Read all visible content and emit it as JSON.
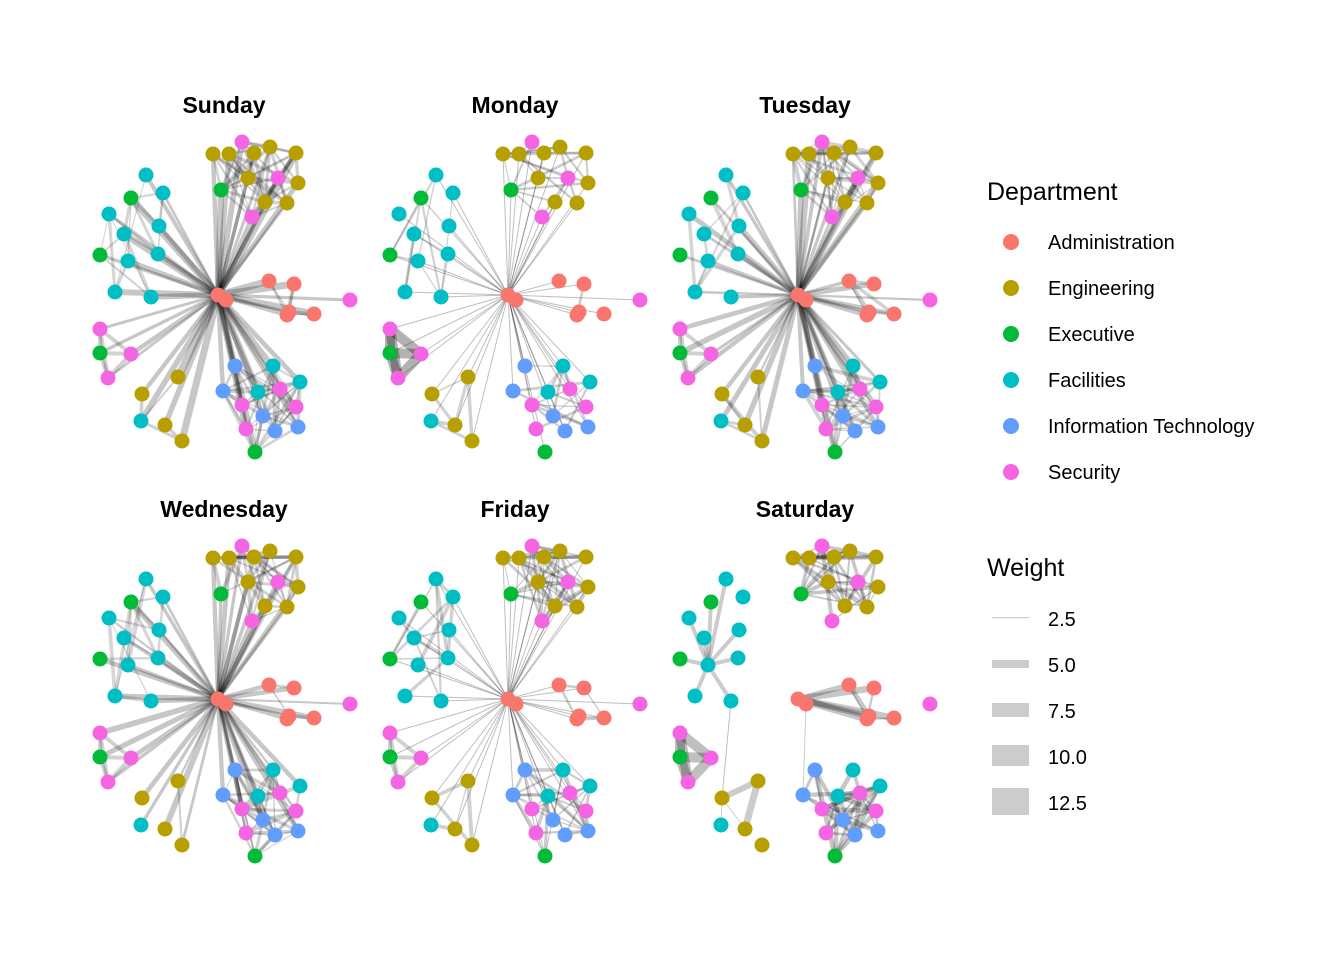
{
  "chart_data": {
    "type": "network",
    "title": "",
    "facets": [
      "Sunday",
      "Monday",
      "Tuesday",
      "Wednesday",
      "Friday",
      "Saturday"
    ],
    "legend": {
      "department": {
        "title": "Department",
        "placement": "right",
        "entries": [
          {
            "label": "Administration",
            "color": "#F8766D"
          },
          {
            "label": "Engineering",
            "color": "#B79F00"
          },
          {
            "label": "Executive",
            "color": "#00BA38"
          },
          {
            "label": "Facilities",
            "color": "#00BFC4"
          },
          {
            "label": "Information Technology",
            "color": "#619CFF"
          },
          {
            "label": "Security",
            "color": "#F564E3"
          }
        ]
      },
      "weight": {
        "title": "Weight",
        "placement": "right",
        "edge_color": "#cccccc",
        "entries": [
          {
            "label": "2.5",
            "value": 2.5
          },
          {
            "label": "5.0",
            "value": 5.0
          },
          {
            "label": "7.5",
            "value": 7.5
          },
          {
            "label": "10.0",
            "value": 10.0
          },
          {
            "label": "12.5",
            "value": 12.5
          }
        ]
      }
    },
    "nodes": [
      {
        "id": 0,
        "dept": "Administration"
      },
      {
        "id": 1,
        "dept": "Administration"
      },
      {
        "id": 2,
        "dept": "Administration"
      },
      {
        "id": 3,
        "dept": "Administration"
      },
      {
        "id": 4,
        "dept": "Administration"
      },
      {
        "id": 5,
        "dept": "Administration"
      },
      {
        "id": 6,
        "dept": "Administration"
      },
      {
        "id": 7,
        "dept": "Security"
      },
      {
        "id": 8,
        "dept": "Engineering"
      },
      {
        "id": 9,
        "dept": "Engineering"
      },
      {
        "id": 10,
        "dept": "Security"
      },
      {
        "id": 11,
        "dept": "Engineering"
      },
      {
        "id": 12,
        "dept": "Engineering"
      },
      {
        "id": 13,
        "dept": "Engineering"
      },
      {
        "id": 14,
        "dept": "Security"
      },
      {
        "id": 15,
        "dept": "Engineering"
      },
      {
        "id": 16,
        "dept": "Engineering"
      },
      {
        "id": 17,
        "dept": "Engineering"
      },
      {
        "id": 18,
        "dept": "Engineering"
      },
      {
        "id": 19,
        "dept": "Executive"
      },
      {
        "id": 20,
        "dept": "Security"
      },
      {
        "id": 21,
        "dept": "Facilities"
      },
      {
        "id": 22,
        "dept": "Facilities"
      },
      {
        "id": 23,
        "dept": "Executive"
      },
      {
        "id": 24,
        "dept": "Facilities"
      },
      {
        "id": 25,
        "dept": "Facilities"
      },
      {
        "id": 26,
        "dept": "Facilities"
      },
      {
        "id": 27,
        "dept": "Executive"
      },
      {
        "id": 28,
        "dept": "Facilities"
      },
      {
        "id": 29,
        "dept": "Facilities"
      },
      {
        "id": 30,
        "dept": "Facilities"
      },
      {
        "id": 31,
        "dept": "Facilities"
      },
      {
        "id": 32,
        "dept": "Security"
      },
      {
        "id": 33,
        "dept": "Executive"
      },
      {
        "id": 34,
        "dept": "Security"
      },
      {
        "id": 35,
        "dept": "Security"
      },
      {
        "id": 36,
        "dept": "Engineering"
      },
      {
        "id": 37,
        "dept": "Engineering"
      },
      {
        "id": 38,
        "dept": "Facilities"
      },
      {
        "id": 39,
        "dept": "Engineering"
      },
      {
        "id": 40,
        "dept": "Engineering"
      },
      {
        "id": 41,
        "dept": "Information Technology"
      },
      {
        "id": 42,
        "dept": "Facilities"
      },
      {
        "id": 43,
        "dept": "Facilities"
      },
      {
        "id": 44,
        "dept": "Information Technology"
      },
      {
        "id": 45,
        "dept": "Facilities"
      },
      {
        "id": 46,
        "dept": "Security"
      },
      {
        "id": 47,
        "dept": "Security"
      },
      {
        "id": 48,
        "dept": "Security"
      },
      {
        "id": 49,
        "dept": "Information Technology"
      },
      {
        "id": 50,
        "dept": "Security"
      },
      {
        "id": 51,
        "dept": "Information Technology"
      },
      {
        "id": 52,
        "dept": "Information Technology"
      },
      {
        "id": 53,
        "dept": "Executive"
      }
    ]
  }
}
